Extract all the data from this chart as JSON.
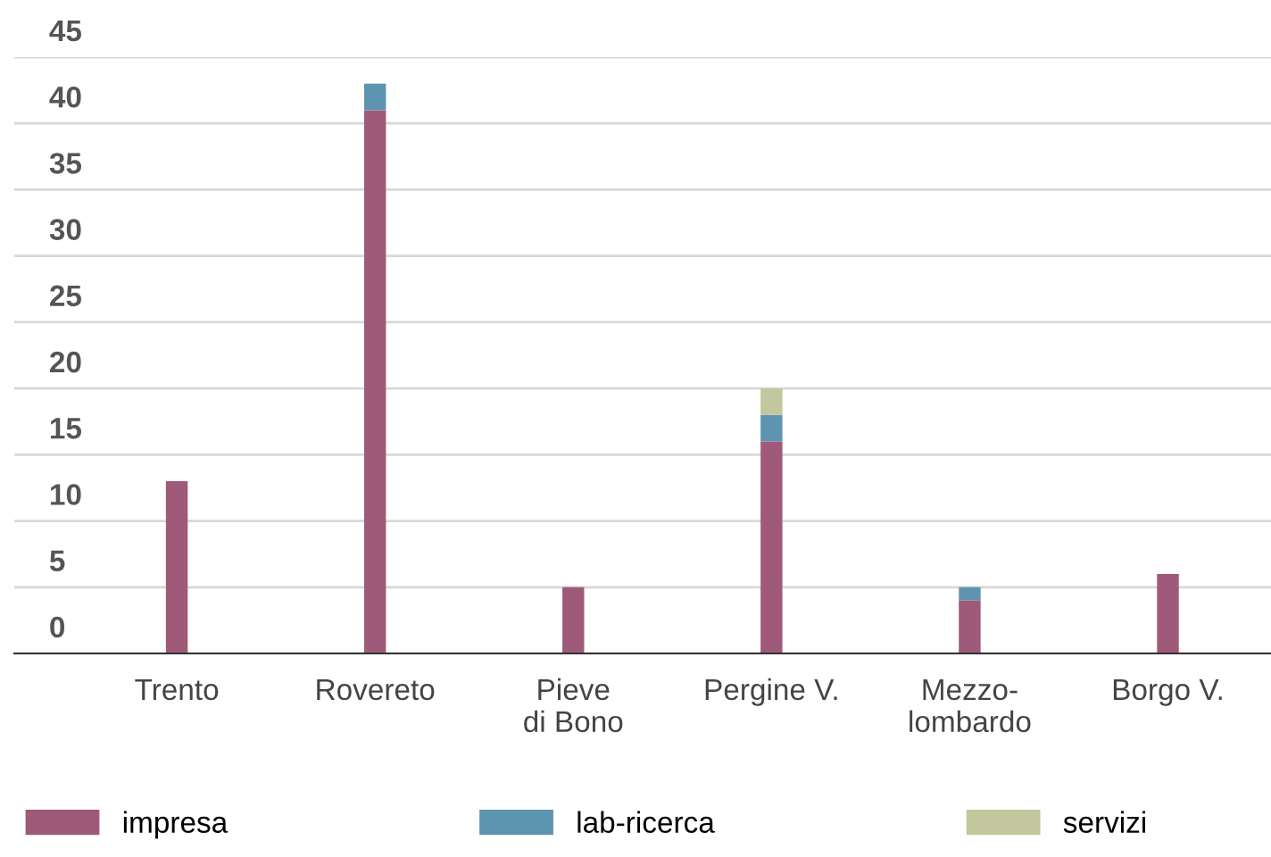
{
  "chart_data": {
    "type": "bar",
    "stacked": true,
    "categories": [
      "Trento",
      "Rovereto",
      "Pieve\ndi Bono",
      "Pergine V.",
      "Mezzo-\nlombardo",
      "Borgo V."
    ],
    "series": [
      {
        "name": "impresa",
        "color": "#9e5a78",
        "values": [
          13,
          41,
          5,
          16,
          4,
          6
        ]
      },
      {
        "name": "lab-ricerca",
        "color": "#5f94b0",
        "values": [
          0,
          2,
          0,
          2,
          1,
          0
        ]
      },
      {
        "name": "servizi",
        "color": "#c2c79e",
        "values": [
          0,
          0,
          0,
          2,
          0,
          0
        ]
      }
    ],
    "ylim": [
      0,
      45
    ],
    "yticks": [
      0,
      5,
      10,
      15,
      20,
      25,
      30,
      35,
      40,
      45
    ],
    "grid": "y",
    "legend": "bottom"
  }
}
